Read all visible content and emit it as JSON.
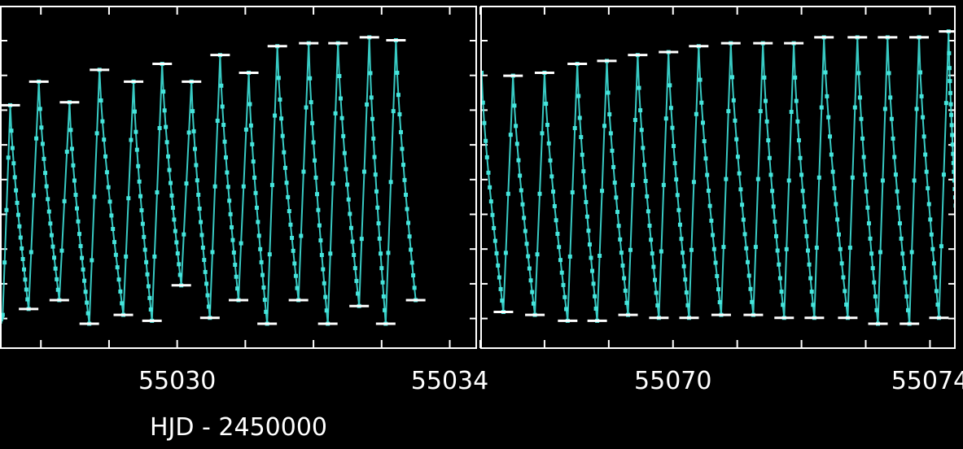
{
  "chart_data": {
    "type": "scatter",
    "xlabel": "HJD - 2450000",
    "ylabel": "",
    "grid": false,
    "colors": {
      "background": "#000000",
      "frame": "#ffffff",
      "series": "#3ee0d8",
      "marker": "#45e5dc",
      "extrema": "#ffffff"
    },
    "panels": [
      {
        "xlim": [
          55027.4,
          55034.4
        ],
        "xticks": [
          55030,
          55034
        ],
        "cycle": 0.4765,
        "series": [
          {
            "values": [
              {
                "x": 55027.39,
                "y": 0.0
              },
              {
                "x": 55027.44,
                "y": 0.03
              },
              {
                "x": 55027.55,
                "y": 0.74
              },
              {
                "x": 55027.82,
                "y": 0.05
              },
              {
                "x": 55027.97,
                "y": 0.82
              },
              {
                "x": 55028.27,
                "y": 0.08
              },
              {
                "x": 55028.42,
                "y": 0.75
              },
              {
                "x": 55028.71,
                "y": 0.0
              },
              {
                "x": 55028.86,
                "y": 0.86
              },
              {
                "x": 55029.21,
                "y": 0.03
              },
              {
                "x": 55029.36,
                "y": 0.82
              },
              {
                "x": 55029.63,
                "y": 0.01
              },
              {
                "x": 55029.78,
                "y": 0.88
              },
              {
                "x": 55030.06,
                "y": 0.13
              },
              {
                "x": 55030.21,
                "y": 0.82
              },
              {
                "x": 55030.48,
                "y": 0.02
              },
              {
                "x": 55030.63,
                "y": 0.91
              },
              {
                "x": 55030.9,
                "y": 0.08
              },
              {
                "x": 55031.05,
                "y": 0.85
              },
              {
                "x": 55031.32,
                "y": 0.0
              },
              {
                "x": 55031.47,
                "y": 0.94
              },
              {
                "x": 55031.78,
                "y": 0.08
              },
              {
                "x": 55031.93,
                "y": 0.95
              },
              {
                "x": 55032.21,
                "y": 0.0
              },
              {
                "x": 55032.36,
                "y": 0.95
              },
              {
                "x": 55032.67,
                "y": 0.06
              },
              {
                "x": 55032.82,
                "y": 0.97
              },
              {
                "x": 55033.06,
                "y": 0.0
              },
              {
                "x": 55033.21,
                "y": 0.96
              },
              {
                "x": 55033.5,
                "y": 0.08
              }
            ]
          }
        ]
      },
      {
        "xlim": [
          55067.0,
          55074.4
        ],
        "xticks": [
          55070,
          55074
        ],
        "cycle": 0.4765,
        "series": [
          {
            "values": [
              {
                "x": 55067.02,
                "y": 0.85
              },
              {
                "x": 55067.36,
                "y": 0.04
              },
              {
                "x": 55067.51,
                "y": 0.84
              },
              {
                "x": 55067.85,
                "y": 0.03
              },
              {
                "x": 55068.0,
                "y": 0.85
              },
              {
                "x": 55068.36,
                "y": 0.01
              },
              {
                "x": 55068.51,
                "y": 0.88
              },
              {
                "x": 55068.82,
                "y": 0.01
              },
              {
                "x": 55068.97,
                "y": 0.89
              },
              {
                "x": 55069.3,
                "y": 0.03
              },
              {
                "x": 55069.45,
                "y": 0.91
              },
              {
                "x": 55069.78,
                "y": 0.02
              },
              {
                "x": 55069.93,
                "y": 0.92
              },
              {
                "x": 55070.25,
                "y": 0.02
              },
              {
                "x": 55070.4,
                "y": 0.94
              },
              {
                "x": 55070.75,
                "y": 0.03
              },
              {
                "x": 55070.9,
                "y": 0.95
              },
              {
                "x": 55071.25,
                "y": 0.03
              },
              {
                "x": 55071.4,
                "y": 0.95
              },
              {
                "x": 55071.73,
                "y": 0.02
              },
              {
                "x": 55071.88,
                "y": 0.95
              },
              {
                "x": 55072.2,
                "y": 0.02
              },
              {
                "x": 55072.35,
                "y": 0.97
              },
              {
                "x": 55072.72,
                "y": 0.02
              },
              {
                "x": 55072.87,
                "y": 0.97
              },
              {
                "x": 55073.19,
                "y": 0.0
              },
              {
                "x": 55073.34,
                "y": 0.97
              },
              {
                "x": 55073.68,
                "y": 0.0
              },
              {
                "x": 55073.83,
                "y": 0.97
              },
              {
                "x": 55074.14,
                "y": 0.02
              },
              {
                "x": 55074.29,
                "y": 0.99
              },
              {
                "x": 55074.4,
                "y": 0.4
              }
            ]
          }
        ]
      }
    ]
  }
}
